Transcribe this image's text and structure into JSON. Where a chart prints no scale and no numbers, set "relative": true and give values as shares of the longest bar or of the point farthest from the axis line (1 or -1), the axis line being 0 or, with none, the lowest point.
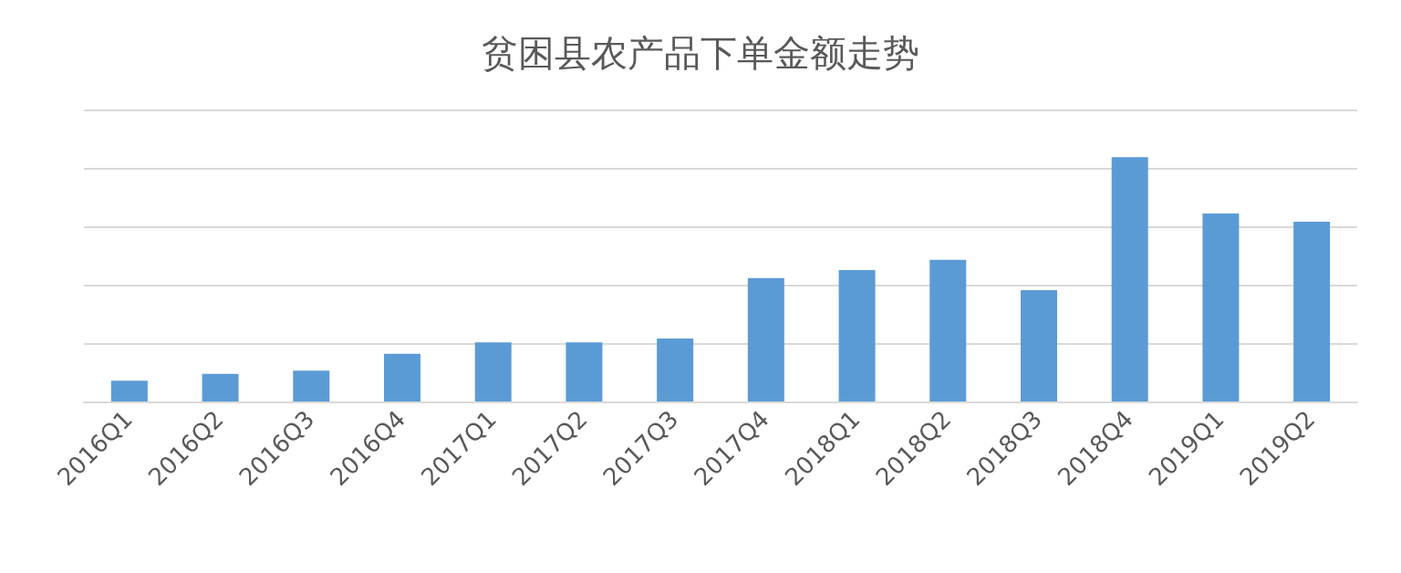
{
  "chart_data": {
    "type": "bar",
    "title": "贫困县农产品下单金额走势",
    "relative": true,
    "grid": "y",
    "categories": [
      "2016Q1",
      "2016Q2",
      "2016Q3",
      "2016Q4",
      "2017Q1",
      "2017Q2",
      "2017Q3",
      "2017Q4",
      "2018Q1",
      "2018Q2",
      "2018Q3",
      "2018Q4",
      "2019Q1",
      "2019Q2"
    ],
    "series": [
      {
        "color": "#5b9bd5",
        "values": [
          0.085,
          0.113,
          0.126,
          0.195,
          0.242,
          0.242,
          0.258,
          0.505,
          0.538,
          0.58,
          0.456,
          1,
          0.769,
          0.736
        ]
      }
    ]
  }
}
